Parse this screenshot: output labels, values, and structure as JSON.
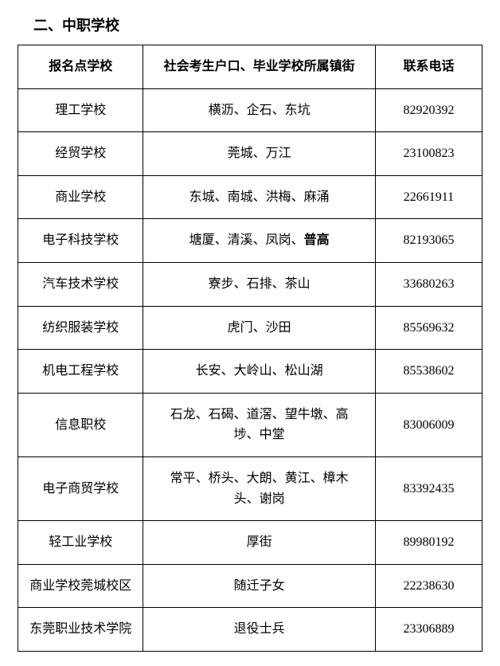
{
  "section_title": "二、中职学校",
  "table": {
    "columns": [
      "报名点学校",
      "社会考生户口、毕业学校所属镇街",
      "联系电话"
    ],
    "rows": [
      {
        "school": "理工学校",
        "areas_html": "横沥、企石、东坑",
        "phone": "82920392"
      },
      {
        "school": "经贸学校",
        "areas_html": "莞城、万江",
        "phone": "23100823"
      },
      {
        "school": "商业学校",
        "areas_html": "东城、南城、洪梅、麻涌",
        "phone": "22661911"
      },
      {
        "school": "电子科技学校",
        "areas_html": "塘厦、清溪、凤岗、<span class=\"bold\">普高</span>",
        "phone": "82193065"
      },
      {
        "school": "汽车技术学校",
        "areas_html": "寮步、石排、茶山",
        "phone": "33680263"
      },
      {
        "school": "纺织服装学校",
        "areas_html": "虎门、沙田",
        "phone": "85569632"
      },
      {
        "school": "机电工程学校",
        "areas_html": "长安、大岭山、松山湖",
        "phone": "85538602"
      },
      {
        "school": "信息职校",
        "areas_html": "石龙、石碣、道滘、望牛墩、高<br>埗、中堂",
        "phone": "83006009"
      },
      {
        "school": "电子商贸学校",
        "areas_html": "常平、桥头、大朗、黄江、樟木<br>头、谢岗",
        "phone": "83392435"
      },
      {
        "school": "轻工业学校",
        "areas_html": "厚街",
        "phone": "89980192"
      },
      {
        "school": "商业学校莞城校区",
        "areas_html": "随迁子女",
        "phone": "22238630"
      },
      {
        "school": "东莞职业技术学院",
        "areas_html": "退役士兵",
        "phone": "23306889"
      }
    ]
  }
}
